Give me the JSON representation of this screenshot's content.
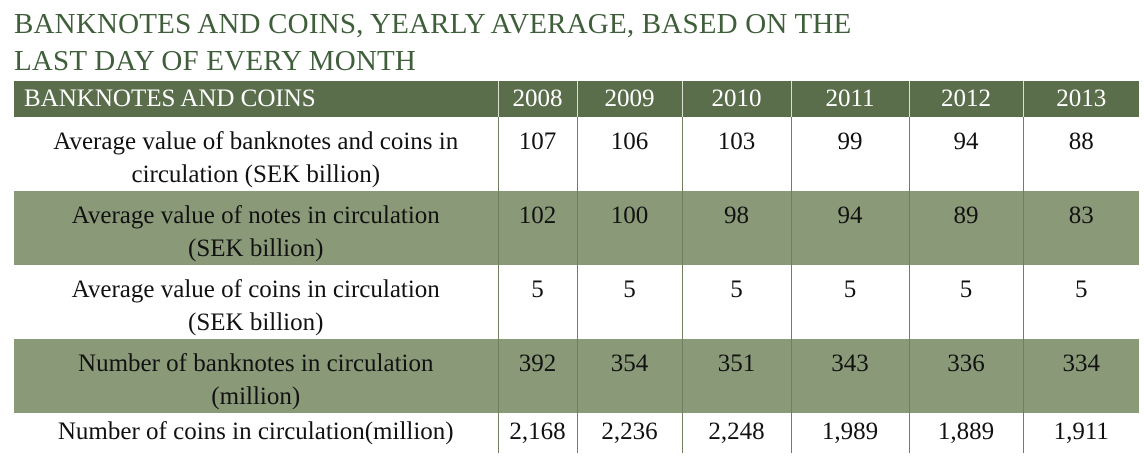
{
  "title_lines": [
    "BANKNOTES AND COINS, YEARLY AVERAGE, BASED ON THE",
    "LAST DAY OF EVERY MONTH"
  ],
  "colors": {
    "title": "#3f5e3a",
    "header_bg": "#5b6e4c",
    "shaded_row": "#8a9a78"
  },
  "chart_data": {
    "type": "table",
    "title": "BANKNOTES AND COINS, YEARLY AVERAGE, BASED ON THE LAST DAY OF EVERY MONTH",
    "row_header": "BANKNOTES AND COINS",
    "columns": [
      "2008",
      "2009",
      "2010",
      "2011",
      "2012",
      "2013"
    ],
    "rows": [
      {
        "label_lines": [
          "Average value of banknotes and coins in",
          "circulation (SEK billion)"
        ],
        "values": [
          "107",
          "106",
          "103",
          "99",
          "94",
          "88"
        ],
        "shaded": false
      },
      {
        "label_lines": [
          "Average value of notes in circulation",
          "(SEK billion)"
        ],
        "values": [
          "102",
          "100",
          "98",
          "94",
          "89",
          "83"
        ],
        "shaded": true
      },
      {
        "label_lines": [
          "Average value of coins in circulation",
          "(SEK billion)"
        ],
        "values": [
          "5",
          "5",
          "5",
          "5",
          "5",
          "5"
        ],
        "shaded": false
      },
      {
        "label_lines": [
          "Number of banknotes in circulation",
          "(million)"
        ],
        "values": [
          "392",
          "354",
          "351",
          "343",
          "336",
          "334"
        ],
        "shaded": true
      },
      {
        "label_lines": [
          "Number of coins in circulation(million)"
        ],
        "values": [
          "2,168",
          "2,236",
          "2,248",
          "1,989",
          "1,889",
          "1,911"
        ],
        "shaded": false
      }
    ]
  }
}
